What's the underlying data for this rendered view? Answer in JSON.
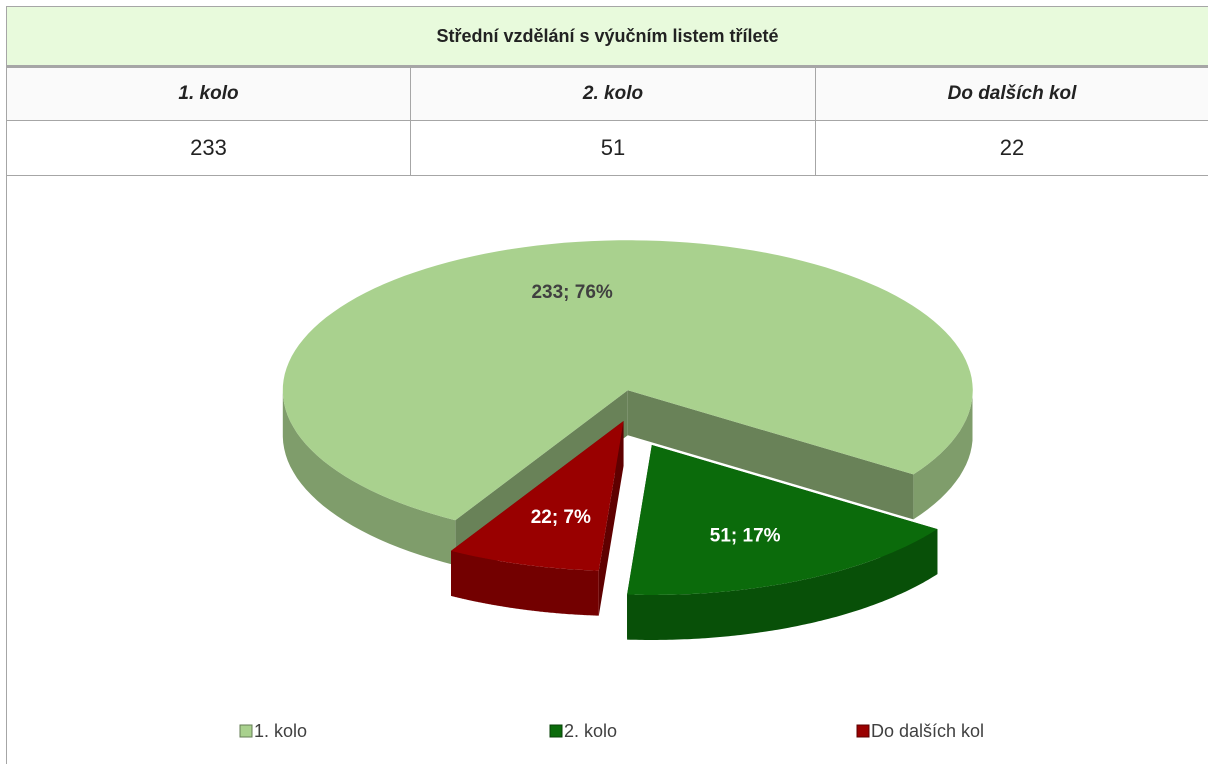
{
  "table": {
    "title": "Střední vzdělání s výučním listem tříleté",
    "headers": [
      "1. kolo",
      "2. kolo",
      "Do dalších kol"
    ],
    "rows": [
      [
        "233",
        "51",
        "22"
      ]
    ]
  },
  "chart_data": {
    "type": "pie3d",
    "categories": [
      "1. kolo",
      "2. kolo",
      "Do dalších kol"
    ],
    "values": [
      233,
      51,
      22
    ],
    "value_labels": [
      "233; 76%",
      "51; 17%",
      "22; 7%"
    ],
    "colors": [
      "#a9d18e",
      "#0b6b0b",
      "#990000"
    ],
    "legend": "bottom"
  }
}
